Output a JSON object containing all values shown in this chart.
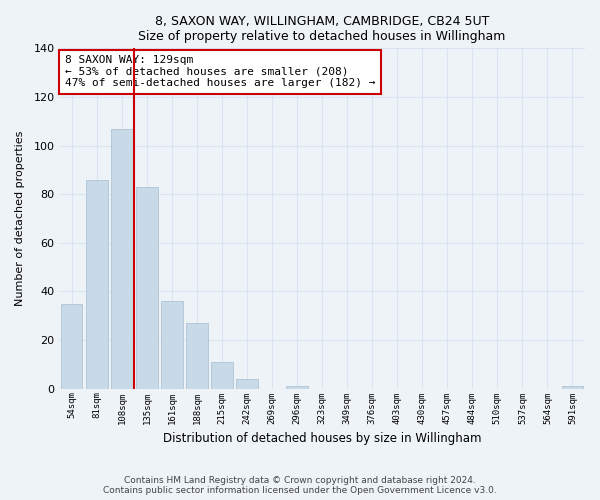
{
  "title": "8, SAXON WAY, WILLINGHAM, CAMBRIDGE, CB24 5UT",
  "subtitle": "Size of property relative to detached houses in Willingham",
  "xlabel": "Distribution of detached houses by size in Willingham",
  "ylabel": "Number of detached properties",
  "bar_labels": [
    "54sqm",
    "81sqm",
    "108sqm",
    "135sqm",
    "161sqm",
    "188sqm",
    "215sqm",
    "242sqm",
    "269sqm",
    "296sqm",
    "323sqm",
    "349sqm",
    "376sqm",
    "403sqm",
    "430sqm",
    "457sqm",
    "484sqm",
    "510sqm",
    "537sqm",
    "564sqm",
    "591sqm"
  ],
  "bar_values": [
    35,
    86,
    107,
    83,
    36,
    27,
    11,
    4,
    0,
    1,
    0,
    0,
    0,
    0,
    0,
    0,
    0,
    0,
    0,
    0,
    1
  ],
  "bar_color": "#c8d9e8",
  "bar_edge_color": "#b0c4d8",
  "vline_x_idx": 2.5,
  "vline_color": "#cc0000",
  "annotation_title": "8 SAXON WAY: 129sqm",
  "annotation_line1": "← 53% of detached houses are smaller (208)",
  "annotation_line2": "47% of semi-detached houses are larger (182) →",
  "annotation_box_color": "#ffffff",
  "annotation_box_edge": "#cc0000",
  "ylim": [
    0,
    140
  ],
  "yticks": [
    0,
    20,
    40,
    60,
    80,
    100,
    120,
    140
  ],
  "footer_line1": "Contains HM Land Registry data © Crown copyright and database right 2024.",
  "footer_line2": "Contains public sector information licensed under the Open Government Licence v3.0.",
  "background_color": "#eef3f8",
  "plot_background": "#eef3f8",
  "grid_color": "#d8e4ef"
}
